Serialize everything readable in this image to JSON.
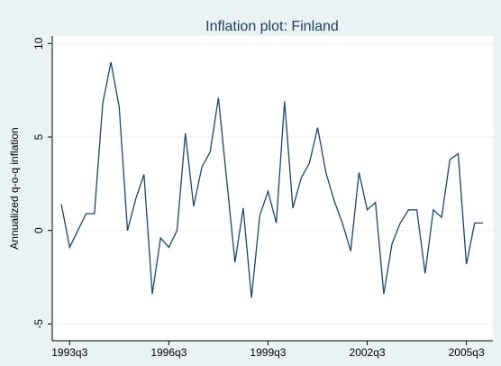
{
  "chart_data": {
    "type": "line",
    "title": "Inflation plot: Finland",
    "y_label": "Annualized q-o-q inflation",
    "x": [
      "1993q2",
      "1993q3",
      "1993q4",
      "1994q1",
      "1994q2",
      "1994q3",
      "1994q4",
      "1995q1",
      "1995q2",
      "1995q3",
      "1995q4",
      "1996q1",
      "1996q2",
      "1996q3",
      "1996q4",
      "1997q1",
      "1997q2",
      "1997q3",
      "1997q4",
      "1998q1",
      "1998q2",
      "1998q3",
      "1998q4",
      "1999q1",
      "1999q2",
      "1999q3",
      "1999q4",
      "2000q1",
      "2000q2",
      "2000q3",
      "2000q4",
      "2001q1",
      "2001q2",
      "2001q3",
      "2001q4",
      "2002q1",
      "2002q2",
      "2002q3",
      "2002q4",
      "2003q1",
      "2003q2",
      "2003q3",
      "2003q4",
      "2004q1",
      "2004q2",
      "2004q3",
      "2004q4",
      "2005q1",
      "2005q2",
      "2005q3",
      "2005q4",
      "2006q1"
    ],
    "series": [
      {
        "name": "Annualized q-o-q inflation",
        "color": "#1a476f",
        "values": [
          1.4,
          -0.9,
          0.0,
          0.9,
          0.9,
          6.8,
          9.0,
          6.6,
          0.0,
          1.7,
          3.0,
          -3.4,
          -0.4,
          -0.9,
          0.0,
          5.2,
          1.3,
          3.4,
          4.2,
          7.1,
          2.7,
          -1.7,
          1.2,
          -3.6,
          0.8,
          2.1,
          0.4,
          6.9,
          1.2,
          2.8,
          3.6,
          5.5,
          3.1,
          1.6,
          0.4,
          -1.1,
          3.1,
          1.1,
          1.5,
          -3.4,
          -0.7,
          0.4,
          1.1,
          1.1,
          -2.3,
          1.1,
          0.7,
          3.8,
          4.1,
          -1.8,
          0.4,
          0.4
        ]
      }
    ],
    "xticks": [
      "1993q3",
      "1996q3",
      "1999q3",
      "2002q3",
      "2005q3"
    ],
    "ylim": [
      -5.9,
      10.4
    ],
    "yticks": [
      -5,
      0,
      5,
      10
    ],
    "grid": true
  }
}
